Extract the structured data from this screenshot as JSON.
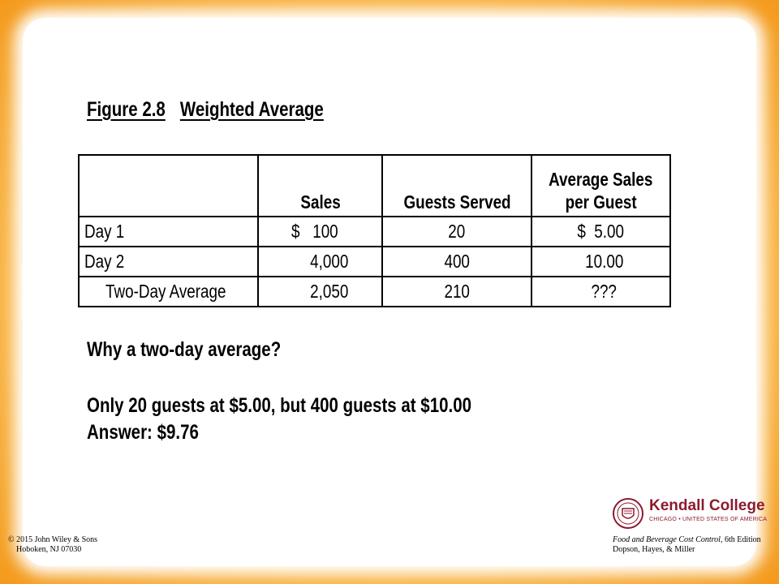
{
  "figure_label": "Figure 2.8",
  "figure_title": "Weighted Average",
  "table": {
    "headers": [
      "",
      "Sales",
      "Guests Served",
      "Average Sales\nper Guest"
    ],
    "header_avg_line1": "Average Sales",
    "header_avg_line2": "per Guest",
    "rows": [
      {
        "label": "Day 1",
        "sales": "$   100",
        "guests": "20",
        "avg": "$  5.00"
      },
      {
        "label": "Day 2",
        "sales": "4,000",
        "guests": "400",
        "avg": "10.00"
      },
      {
        "label": "Two-Day Average",
        "sales": "2,050",
        "guests": "210",
        "avg": "???"
      }
    ]
  },
  "question": "Why a two-day average?",
  "explanation": "Only 20 guests at $5.00, but 400 guests at $10.00",
  "answer": "Answer:  $9.76",
  "footer": {
    "copyright": "© 2015 John Wiley & Sons",
    "address": "Hoboken, NJ  07030",
    "book_title": "Food and Beverage Cost Control,",
    "edition": " 6th Edition",
    "authors": "Dopson, Hayes, & Miller"
  },
  "logo": {
    "name": "Kendall College",
    "tagline": "CHICAGO • UNITED STATES OF AMERICA"
  },
  "colors": {
    "frame": "#f7a531",
    "brand": "#8c1b2f"
  }
}
